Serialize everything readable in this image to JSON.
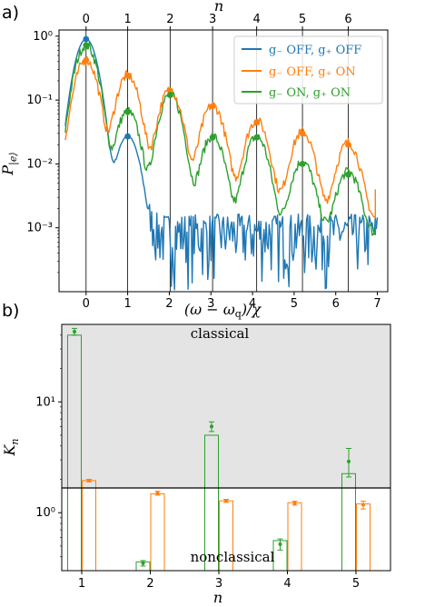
{
  "chart_data": [
    {
      "panel": "a)",
      "type": "line",
      "x_label": "(ω − ω_q)/χ",
      "y_label": "P_|e⟩",
      "top_x_label": "n",
      "y_scale": "log",
      "xlim": [
        -0.65,
        7.25
      ],
      "ylim": [
        0.0001,
        1.25
      ],
      "x_ticks": [
        0,
        1,
        2,
        3,
        4,
        5,
        6,
        7
      ],
      "top_x_ticks": [
        0,
        1,
        2,
        3,
        4,
        5,
        6
      ],
      "y_tick_labels": [
        "10⁰",
        "10⁻¹",
        "10⁻²",
        "10⁻³"
      ],
      "y_tick_values": [
        1,
        0.1,
        0.01,
        0.001
      ],
      "vertical_lines_at": [
        0,
        1,
        2.02,
        3.04,
        4.1,
        5.2,
        6.3
      ],
      "legend_position": "top-right",
      "series": [
        {
          "name": "g₋ OFF, g₊ OFF",
          "color": "#1f77b4",
          "peak_x": [
            0,
            1
          ],
          "peak_y": [
            0.9,
            0.027
          ],
          "noise_floor": 0.0007
        },
        {
          "name": "g₋ OFF, g₊ ON",
          "color": "#ff7f0e",
          "peak_x": [
            0,
            1,
            2.02,
            3.04,
            4.1,
            5.2,
            6.3
          ],
          "peak_y": [
            0.42,
            0.24,
            0.14,
            0.08,
            0.045,
            0.03,
            0.02
          ],
          "tail_x": 6.95,
          "tail_y": 0.004
        },
        {
          "name": "g₋ ON, g₊ ON",
          "color": "#2ca02c",
          "peak_x": [
            0,
            1,
            2.02,
            3.04,
            4.1,
            5.2,
            6.3
          ],
          "peak_y": [
            0.72,
            0.065,
            0.12,
            0.026,
            0.026,
            0.01,
            0.0068
          ],
          "tail_x": 6.95,
          "tail_y": 0.0013
        }
      ]
    },
    {
      "panel": "b)",
      "type": "bar",
      "x_label": "n",
      "y_label": "K_n",
      "y_scale": "log",
      "ylim": [
        0.3,
        50
      ],
      "categories": [
        "1",
        "2",
        "3",
        "4",
        "5"
      ],
      "y_tick_labels": [
        "10⁰",
        "10¹"
      ],
      "reference_line": 1.0,
      "region_labels": {
        "above": "classical",
        "below": "nonclassical"
      },
      "series": [
        {
          "color": "#2ca02c",
          "bar_values": [
            40,
            0.36,
            5.0,
            0.56,
            2.25
          ],
          "measured": [
            43,
            0.35,
            6.0,
            0.52,
            2.9
          ],
          "err_low": [
            40,
            0.33,
            5.4,
            0.46,
            2.1
          ],
          "err_high": [
            46,
            0.37,
            6.6,
            0.58,
            3.8
          ]
        },
        {
          "color": "#ff7f0e",
          "bar_values": [
            1.95,
            1.48,
            1.28,
            1.23,
            1.2
          ],
          "measured": [
            1.95,
            1.5,
            1.28,
            1.22,
            1.18
          ],
          "err_low": [
            1.9,
            1.44,
            1.24,
            1.17,
            1.08
          ],
          "err_high": [
            2.0,
            1.56,
            1.32,
            1.27,
            1.27
          ]
        }
      ]
    }
  ]
}
